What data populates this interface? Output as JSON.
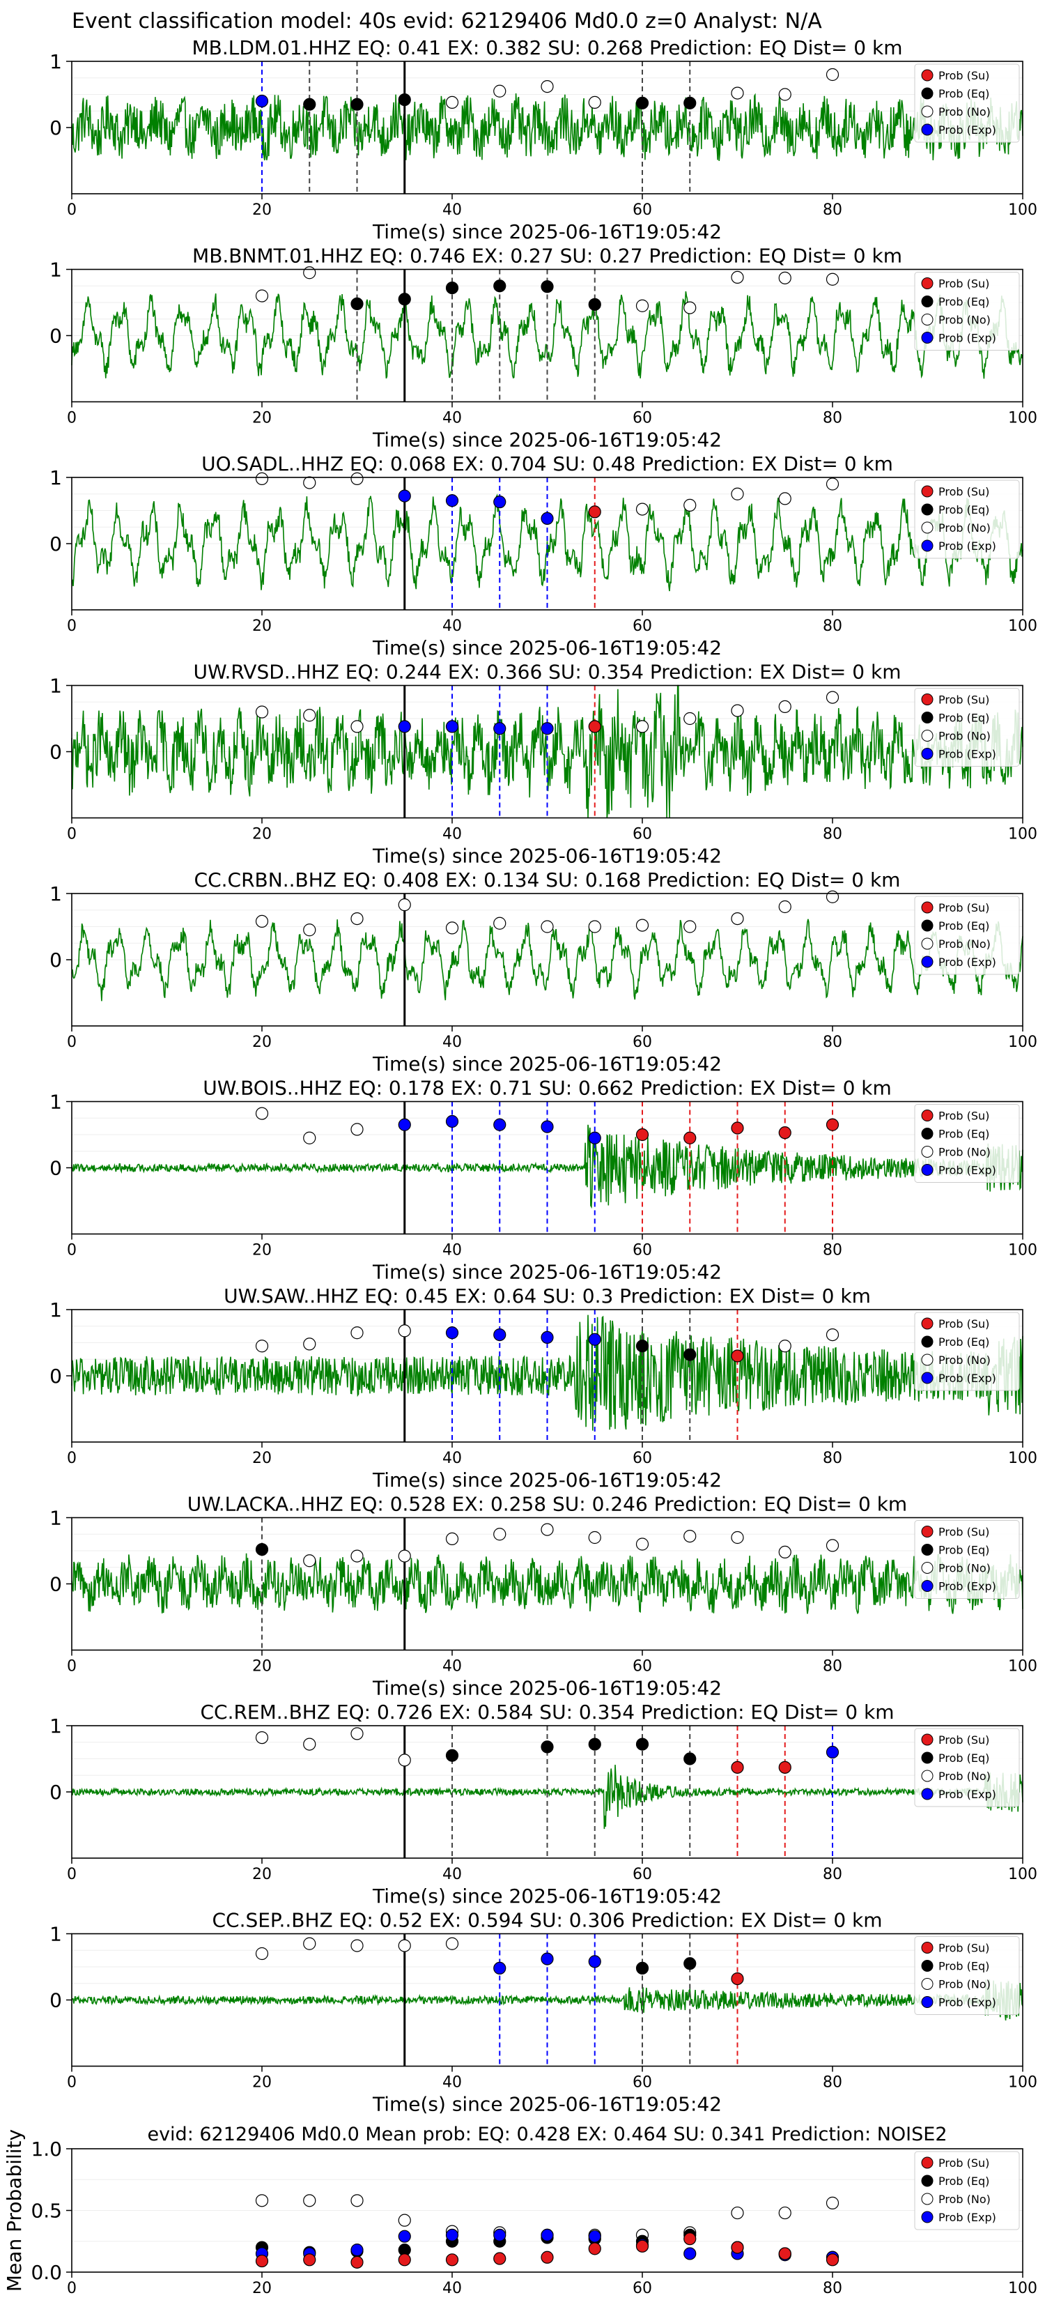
{
  "suptitle": "Event classification model: 40s evid: 62129406 Md0.0 z=0 Analyst: N/A",
  "xlabel": "Time(s) since 2025-06-16T19:05:42",
  "legend": [
    {
      "key": "su",
      "label": "Prob (Su)",
      "color": "#e41a1c",
      "filled": true
    },
    {
      "key": "eq",
      "label": "Prob (Eq)",
      "color": "#000000",
      "filled": true
    },
    {
      "key": "no",
      "label": "Prob (No)",
      "color": "#ffffff",
      "filled": false
    },
    {
      "key": "ex",
      "label": "Prob (Exp)",
      "color": "#0000ff",
      "filled": true
    }
  ],
  "colors": {
    "waveform": "#008000",
    "su": "#e41a1c",
    "eq": "#000000",
    "ex": "#0000ff",
    "no": "#ffffff",
    "marker_edge": "#000000",
    "ref_line": "#000000"
  },
  "x_ticks": [
    0,
    20,
    40,
    60,
    80,
    100
  ],
  "reference_time": 35,
  "chart_data": [
    {
      "type": "scatter",
      "station": "MB.LDM.01.HHZ",
      "eq": "0.41",
      "ex": "0.382",
      "su": "0.268",
      "prediction": "EQ",
      "dist": "0",
      "xlim": [
        0,
        100
      ],
      "ylim": [
        -1,
        1
      ],
      "yticks": [
        0,
        1
      ],
      "waveform_amp": 0.45,
      "waveform_style": "noisy",
      "points": [
        {
          "x": 20,
          "y": 0.4,
          "cls": "ex"
        },
        {
          "x": 25,
          "y": 0.35,
          "cls": "eq"
        },
        {
          "x": 30,
          "y": 0.35,
          "cls": "eq"
        },
        {
          "x": 35,
          "y": 0.42,
          "cls": "eq"
        },
        {
          "x": 40,
          "y": 0.38,
          "cls": "no"
        },
        {
          "x": 45,
          "y": 0.55,
          "cls": "no"
        },
        {
          "x": 50,
          "y": 0.62,
          "cls": "no"
        },
        {
          "x": 55,
          "y": 0.38,
          "cls": "no"
        },
        {
          "x": 60,
          "y": 0.37,
          "cls": "eq"
        },
        {
          "x": 65,
          "y": 0.37,
          "cls": "eq"
        },
        {
          "x": 70,
          "y": 0.52,
          "cls": "no"
        },
        {
          "x": 75,
          "y": 0.5,
          "cls": "no"
        },
        {
          "x": 80,
          "y": 0.8,
          "cls": "no"
        }
      ]
    },
    {
      "type": "scatter",
      "station": "MB.BNMT.01.HHZ",
      "eq": "0.746",
      "ex": "0.27",
      "su": "0.27",
      "prediction": "EQ",
      "dist": "0",
      "xlim": [
        0,
        100
      ],
      "ylim": [
        -1,
        1
      ],
      "yticks": [
        0,
        1
      ],
      "waveform_amp": 0.6,
      "waveform_style": "smooth",
      "points": [
        {
          "x": 20,
          "y": 0.6,
          "cls": "no"
        },
        {
          "x": 25,
          "y": 0.95,
          "cls": "no"
        },
        {
          "x": 30,
          "y": 0.48,
          "cls": "eq"
        },
        {
          "x": 35,
          "y": 0.55,
          "cls": "eq"
        },
        {
          "x": 40,
          "y": 0.72,
          "cls": "eq"
        },
        {
          "x": 45,
          "y": 0.75,
          "cls": "eq"
        },
        {
          "x": 50,
          "y": 0.74,
          "cls": "eq"
        },
        {
          "x": 55,
          "y": 0.47,
          "cls": "eq"
        },
        {
          "x": 60,
          "y": 0.45,
          "cls": "no"
        },
        {
          "x": 65,
          "y": 0.42,
          "cls": "no"
        },
        {
          "x": 70,
          "y": 0.88,
          "cls": "no"
        },
        {
          "x": 75,
          "y": 0.87,
          "cls": "no"
        },
        {
          "x": 80,
          "y": 0.85,
          "cls": "no"
        }
      ]
    },
    {
      "type": "scatter",
      "station": "UO.SADL..HHZ",
      "eq": "0.068",
      "ex": "0.704",
      "su": "0.48",
      "prediction": "EX",
      "dist": "0",
      "xlim": [
        0,
        100
      ],
      "ylim": [
        -1,
        1
      ],
      "yticks": [
        0,
        1
      ],
      "waveform_amp": 0.65,
      "waveform_style": "smooth",
      "points": [
        {
          "x": 20,
          "y": 0.98,
          "cls": "no"
        },
        {
          "x": 25,
          "y": 0.92,
          "cls": "no"
        },
        {
          "x": 30,
          "y": 0.98,
          "cls": "no"
        },
        {
          "x": 35,
          "y": 0.72,
          "cls": "ex"
        },
        {
          "x": 40,
          "y": 0.65,
          "cls": "ex"
        },
        {
          "x": 45,
          "y": 0.63,
          "cls": "ex"
        },
        {
          "x": 50,
          "y": 0.38,
          "cls": "ex"
        },
        {
          "x": 55,
          "y": 0.48,
          "cls": "su"
        },
        {
          "x": 60,
          "y": 0.52,
          "cls": "no"
        },
        {
          "x": 65,
          "y": 0.58,
          "cls": "no"
        },
        {
          "x": 70,
          "y": 0.75,
          "cls": "no"
        },
        {
          "x": 75,
          "y": 0.68,
          "cls": "no"
        },
        {
          "x": 80,
          "y": 0.9,
          "cls": "no"
        }
      ]
    },
    {
      "type": "scatter",
      "station": "UW.RVSD..HHZ",
      "eq": "0.244",
      "ex": "0.366",
      "su": "0.354",
      "prediction": "EX",
      "dist": "0",
      "xlim": [
        0,
        100
      ],
      "ylim": [
        -1,
        1
      ],
      "yticks": [
        0,
        1
      ],
      "waveform_amp": 0.5,
      "waveform_style": "dense",
      "points": [
        {
          "x": 20,
          "y": 0.6,
          "cls": "no"
        },
        {
          "x": 25,
          "y": 0.55,
          "cls": "no"
        },
        {
          "x": 30,
          "y": 0.38,
          "cls": "no"
        },
        {
          "x": 35,
          "y": 0.38,
          "cls": "ex"
        },
        {
          "x": 40,
          "y": 0.38,
          "cls": "ex"
        },
        {
          "x": 45,
          "y": 0.35,
          "cls": "ex"
        },
        {
          "x": 50,
          "y": 0.35,
          "cls": "ex"
        },
        {
          "x": 55,
          "y": 0.38,
          "cls": "su"
        },
        {
          "x": 60,
          "y": 0.38,
          "cls": "no"
        },
        {
          "x": 65,
          "y": 0.5,
          "cls": "no"
        },
        {
          "x": 70,
          "y": 0.62,
          "cls": "no"
        },
        {
          "x": 75,
          "y": 0.68,
          "cls": "no"
        },
        {
          "x": 80,
          "y": 0.82,
          "cls": "no"
        }
      ]
    },
    {
      "type": "scatter",
      "station": "CC.CRBN..BHZ",
      "eq": "0.408",
      "ex": "0.134",
      "su": "0.168",
      "prediction": "EQ",
      "dist": "0",
      "xlim": [
        0,
        100
      ],
      "ylim": [
        -1,
        1
      ],
      "yticks": [
        0,
        1
      ],
      "waveform_amp": 0.55,
      "waveform_style": "smooth",
      "points": [
        {
          "x": 20,
          "y": 0.58,
          "cls": "no"
        },
        {
          "x": 25,
          "y": 0.45,
          "cls": "no"
        },
        {
          "x": 30,
          "y": 0.62,
          "cls": "no"
        },
        {
          "x": 35,
          "y": 0.83,
          "cls": "no"
        },
        {
          "x": 40,
          "y": 0.48,
          "cls": "no"
        },
        {
          "x": 45,
          "y": 0.55,
          "cls": "no"
        },
        {
          "x": 50,
          "y": 0.5,
          "cls": "no"
        },
        {
          "x": 55,
          "y": 0.5,
          "cls": "no"
        },
        {
          "x": 60,
          "y": 0.52,
          "cls": "no"
        },
        {
          "x": 65,
          "y": 0.5,
          "cls": "no"
        },
        {
          "x": 70,
          "y": 0.62,
          "cls": "no"
        },
        {
          "x": 75,
          "y": 0.8,
          "cls": "no"
        },
        {
          "x": 80,
          "y": 0.95,
          "cls": "no"
        }
      ]
    },
    {
      "type": "scatter",
      "station": "UW.BOIS..HHZ",
      "eq": "0.178",
      "ex": "0.71",
      "su": "0.662",
      "prediction": "EX",
      "dist": "0",
      "xlim": [
        0,
        100
      ],
      "ylim": [
        -1,
        1
      ],
      "yticks": [
        0,
        1
      ],
      "waveform_amp": 0.06,
      "waveform_style": "event",
      "event_start": 54,
      "event_amp": 0.6,
      "points": [
        {
          "x": 20,
          "y": 0.82,
          "cls": "no"
        },
        {
          "x": 25,
          "y": 0.45,
          "cls": "no"
        },
        {
          "x": 30,
          "y": 0.58,
          "cls": "no"
        },
        {
          "x": 35,
          "y": 0.65,
          "cls": "ex"
        },
        {
          "x": 40,
          "y": 0.7,
          "cls": "ex"
        },
        {
          "x": 45,
          "y": 0.65,
          "cls": "ex"
        },
        {
          "x": 50,
          "y": 0.62,
          "cls": "ex"
        },
        {
          "x": 55,
          "y": 0.45,
          "cls": "ex"
        },
        {
          "x": 60,
          "y": 0.5,
          "cls": "su"
        },
        {
          "x": 65,
          "y": 0.45,
          "cls": "su"
        },
        {
          "x": 70,
          "y": 0.6,
          "cls": "su"
        },
        {
          "x": 75,
          "y": 0.53,
          "cls": "su"
        },
        {
          "x": 80,
          "y": 0.65,
          "cls": "su"
        }
      ]
    },
    {
      "type": "scatter",
      "station": "UW.SAW..HHZ",
      "eq": "0.45",
      "ex": "0.64",
      "su": "0.3",
      "prediction": "EX",
      "dist": "0",
      "xlim": [
        0,
        100
      ],
      "ylim": [
        -1,
        1
      ],
      "yticks": [
        0,
        1
      ],
      "waveform_amp": 0.3,
      "waveform_style": "event",
      "event_start": 53,
      "event_amp": 0.7,
      "points": [
        {
          "x": 20,
          "y": 0.45,
          "cls": "no"
        },
        {
          "x": 25,
          "y": 0.48,
          "cls": "no"
        },
        {
          "x": 30,
          "y": 0.65,
          "cls": "no"
        },
        {
          "x": 35,
          "y": 0.68,
          "cls": "no"
        },
        {
          "x": 40,
          "y": 0.65,
          "cls": "ex"
        },
        {
          "x": 45,
          "y": 0.62,
          "cls": "ex"
        },
        {
          "x": 50,
          "y": 0.58,
          "cls": "ex"
        },
        {
          "x": 55,
          "y": 0.55,
          "cls": "ex"
        },
        {
          "x": 60,
          "y": 0.45,
          "cls": "eq"
        },
        {
          "x": 65,
          "y": 0.32,
          "cls": "eq"
        },
        {
          "x": 70,
          "y": 0.3,
          "cls": "su"
        },
        {
          "x": 75,
          "y": 0.45,
          "cls": "no"
        },
        {
          "x": 80,
          "y": 0.62,
          "cls": "no"
        }
      ]
    },
    {
      "type": "scatter",
      "station": "UW.LACKA..HHZ",
      "eq": "0.528",
      "ex": "0.258",
      "su": "0.246",
      "prediction": "EQ",
      "dist": "0",
      "xlim": [
        0,
        100
      ],
      "ylim": [
        -1,
        1
      ],
      "yticks": [
        0,
        1
      ],
      "waveform_amp": 0.4,
      "waveform_style": "noisy",
      "points": [
        {
          "x": 20,
          "y": 0.52,
          "cls": "eq"
        },
        {
          "x": 25,
          "y": 0.35,
          "cls": "no"
        },
        {
          "x": 30,
          "y": 0.42,
          "cls": "no"
        },
        {
          "x": 35,
          "y": 0.42,
          "cls": "no"
        },
        {
          "x": 40,
          "y": 0.68,
          "cls": "no"
        },
        {
          "x": 45,
          "y": 0.75,
          "cls": "no"
        },
        {
          "x": 50,
          "y": 0.82,
          "cls": "no"
        },
        {
          "x": 55,
          "y": 0.7,
          "cls": "no"
        },
        {
          "x": 60,
          "y": 0.6,
          "cls": "no"
        },
        {
          "x": 65,
          "y": 0.72,
          "cls": "no"
        },
        {
          "x": 70,
          "y": 0.7,
          "cls": "no"
        },
        {
          "x": 75,
          "y": 0.48,
          "cls": "no"
        },
        {
          "x": 80,
          "y": 0.58,
          "cls": "no"
        }
      ]
    },
    {
      "type": "scatter",
      "station": "CC.REM..BHZ",
      "eq": "0.726",
      "ex": "0.584",
      "su": "0.354",
      "prediction": "EQ",
      "dist": "0",
      "xlim": [
        0,
        100
      ],
      "ylim": [
        -1,
        1
      ],
      "yticks": [
        0,
        1
      ],
      "waveform_amp": 0.05,
      "waveform_style": "burst",
      "event_start": 56,
      "event_amp": 0.6,
      "points": [
        {
          "x": 20,
          "y": 0.82,
          "cls": "no"
        },
        {
          "x": 25,
          "y": 0.72,
          "cls": "no"
        },
        {
          "x": 30,
          "y": 0.88,
          "cls": "no"
        },
        {
          "x": 35,
          "y": 0.48,
          "cls": "no"
        },
        {
          "x": 40,
          "y": 0.55,
          "cls": "eq"
        },
        {
          "x": 50,
          "y": 0.68,
          "cls": "eq"
        },
        {
          "x": 55,
          "y": 0.72,
          "cls": "eq"
        },
        {
          "x": 60,
          "y": 0.72,
          "cls": "eq"
        },
        {
          "x": 65,
          "y": 0.5,
          "cls": "eq"
        },
        {
          "x": 70,
          "y": 0.37,
          "cls": "su"
        },
        {
          "x": 75,
          "y": 0.37,
          "cls": "su"
        },
        {
          "x": 80,
          "y": 0.6,
          "cls": "ex"
        }
      ]
    },
    {
      "type": "scatter",
      "station": "CC.SEP..BHZ",
      "eq": "0.52",
      "ex": "0.594",
      "su": "0.306",
      "prediction": "EX",
      "dist": "0",
      "xlim": [
        0,
        100
      ],
      "ylim": [
        -1,
        1
      ],
      "yticks": [
        0,
        1
      ],
      "waveform_amp": 0.06,
      "waveform_style": "event",
      "event_start": 58,
      "event_amp": 0.15,
      "points": [
        {
          "x": 20,
          "y": 0.7,
          "cls": "no"
        },
        {
          "x": 25,
          "y": 0.85,
          "cls": "no"
        },
        {
          "x": 30,
          "y": 0.82,
          "cls": "no"
        },
        {
          "x": 35,
          "y": 0.82,
          "cls": "no"
        },
        {
          "x": 40,
          "y": 0.85,
          "cls": "no"
        },
        {
          "x": 45,
          "y": 0.48,
          "cls": "ex"
        },
        {
          "x": 50,
          "y": 0.62,
          "cls": "ex"
        },
        {
          "x": 55,
          "y": 0.58,
          "cls": "ex"
        },
        {
          "x": 60,
          "y": 0.48,
          "cls": "eq"
        },
        {
          "x": 65,
          "y": 0.55,
          "cls": "eq"
        },
        {
          "x": 70,
          "y": 0.32,
          "cls": "su"
        }
      ]
    }
  ],
  "mean_chart": {
    "type": "scatter",
    "title": "evid: 62129406   Md0.0   Mean prob:   EQ: 0.428  EX: 0.464  SU: 0.341   Prediction: NOISE2",
    "ylabel": "Mean Probability",
    "xlim": [
      0,
      100
    ],
    "ylim": [
      0,
      1
    ],
    "yticks": [
      "0.0",
      "0.5",
      "1.0"
    ],
    "x": [
      20,
      25,
      30,
      35,
      40,
      45,
      50,
      55,
      60,
      65,
      70,
      75,
      80
    ],
    "series": [
      {
        "key": "no",
        "values": [
          0.58,
          0.58,
          0.58,
          0.42,
          0.33,
          0.32,
          0.3,
          0.3,
          0.3,
          0.32,
          0.48,
          0.48,
          0.56
        ]
      },
      {
        "key": "eq",
        "values": [
          0.2,
          0.16,
          0.17,
          0.18,
          0.25,
          0.25,
          0.28,
          0.27,
          0.25,
          0.3,
          0.2,
          0.15,
          0.12
        ]
      },
      {
        "key": "ex",
        "values": [
          0.15,
          0.15,
          0.18,
          0.29,
          0.3,
          0.3,
          0.3,
          0.29,
          0.22,
          0.15,
          0.15,
          0.14,
          0.12
        ]
      },
      {
        "key": "su",
        "values": [
          0.09,
          0.1,
          0.08,
          0.1,
          0.1,
          0.11,
          0.12,
          0.19,
          0.21,
          0.27,
          0.2,
          0.15,
          0.1
        ]
      }
    ]
  }
}
